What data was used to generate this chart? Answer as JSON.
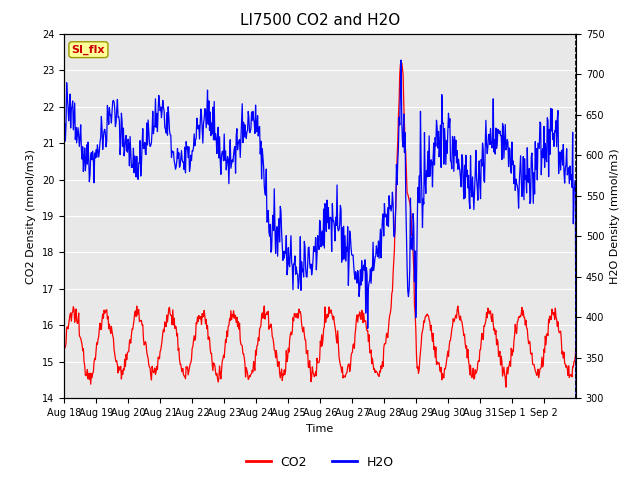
{
  "title": "LI7500 CO2 and H2O",
  "ylabel_left": "CO2 Density (mmol/m3)",
  "ylabel_right": "H2O Density (mmol/m3)",
  "xlabel": "Time",
  "ylim_left": [
    14.0,
    24.0
  ],
  "ylim_right": [
    300,
    750
  ],
  "yticks_left": [
    14.0,
    15.0,
    16.0,
    17.0,
    18.0,
    19.0,
    20.0,
    21.0,
    22.0,
    23.0,
    24.0
  ],
  "yticks_right": [
    300,
    350,
    400,
    450,
    500,
    550,
    600,
    650,
    700,
    750
  ],
  "xtick_labels": [
    "Aug 18",
    "Aug 19",
    "Aug 20",
    "Aug 21",
    "Aug 22",
    "Aug 23",
    "Aug 24",
    "Aug 25",
    "Aug 26",
    "Aug 27",
    "Aug 28",
    "Aug 29",
    "Aug 30",
    "Aug 31",
    "Sep 1",
    "Sep 2"
  ],
  "color_co2": "#ff0000",
  "color_h2o": "#0000ff",
  "bg_color": "#e8e8e8",
  "label_box_text": "SI_flx",
  "label_box_color": "#ffff99",
  "label_box_text_color": "#cc0000",
  "legend_co2": "CO2",
  "legend_h2o": "H2O",
  "grid_color": "#ffffff",
  "title_fontsize": 11,
  "tick_fontsize": 7,
  "label_fontsize": 8
}
